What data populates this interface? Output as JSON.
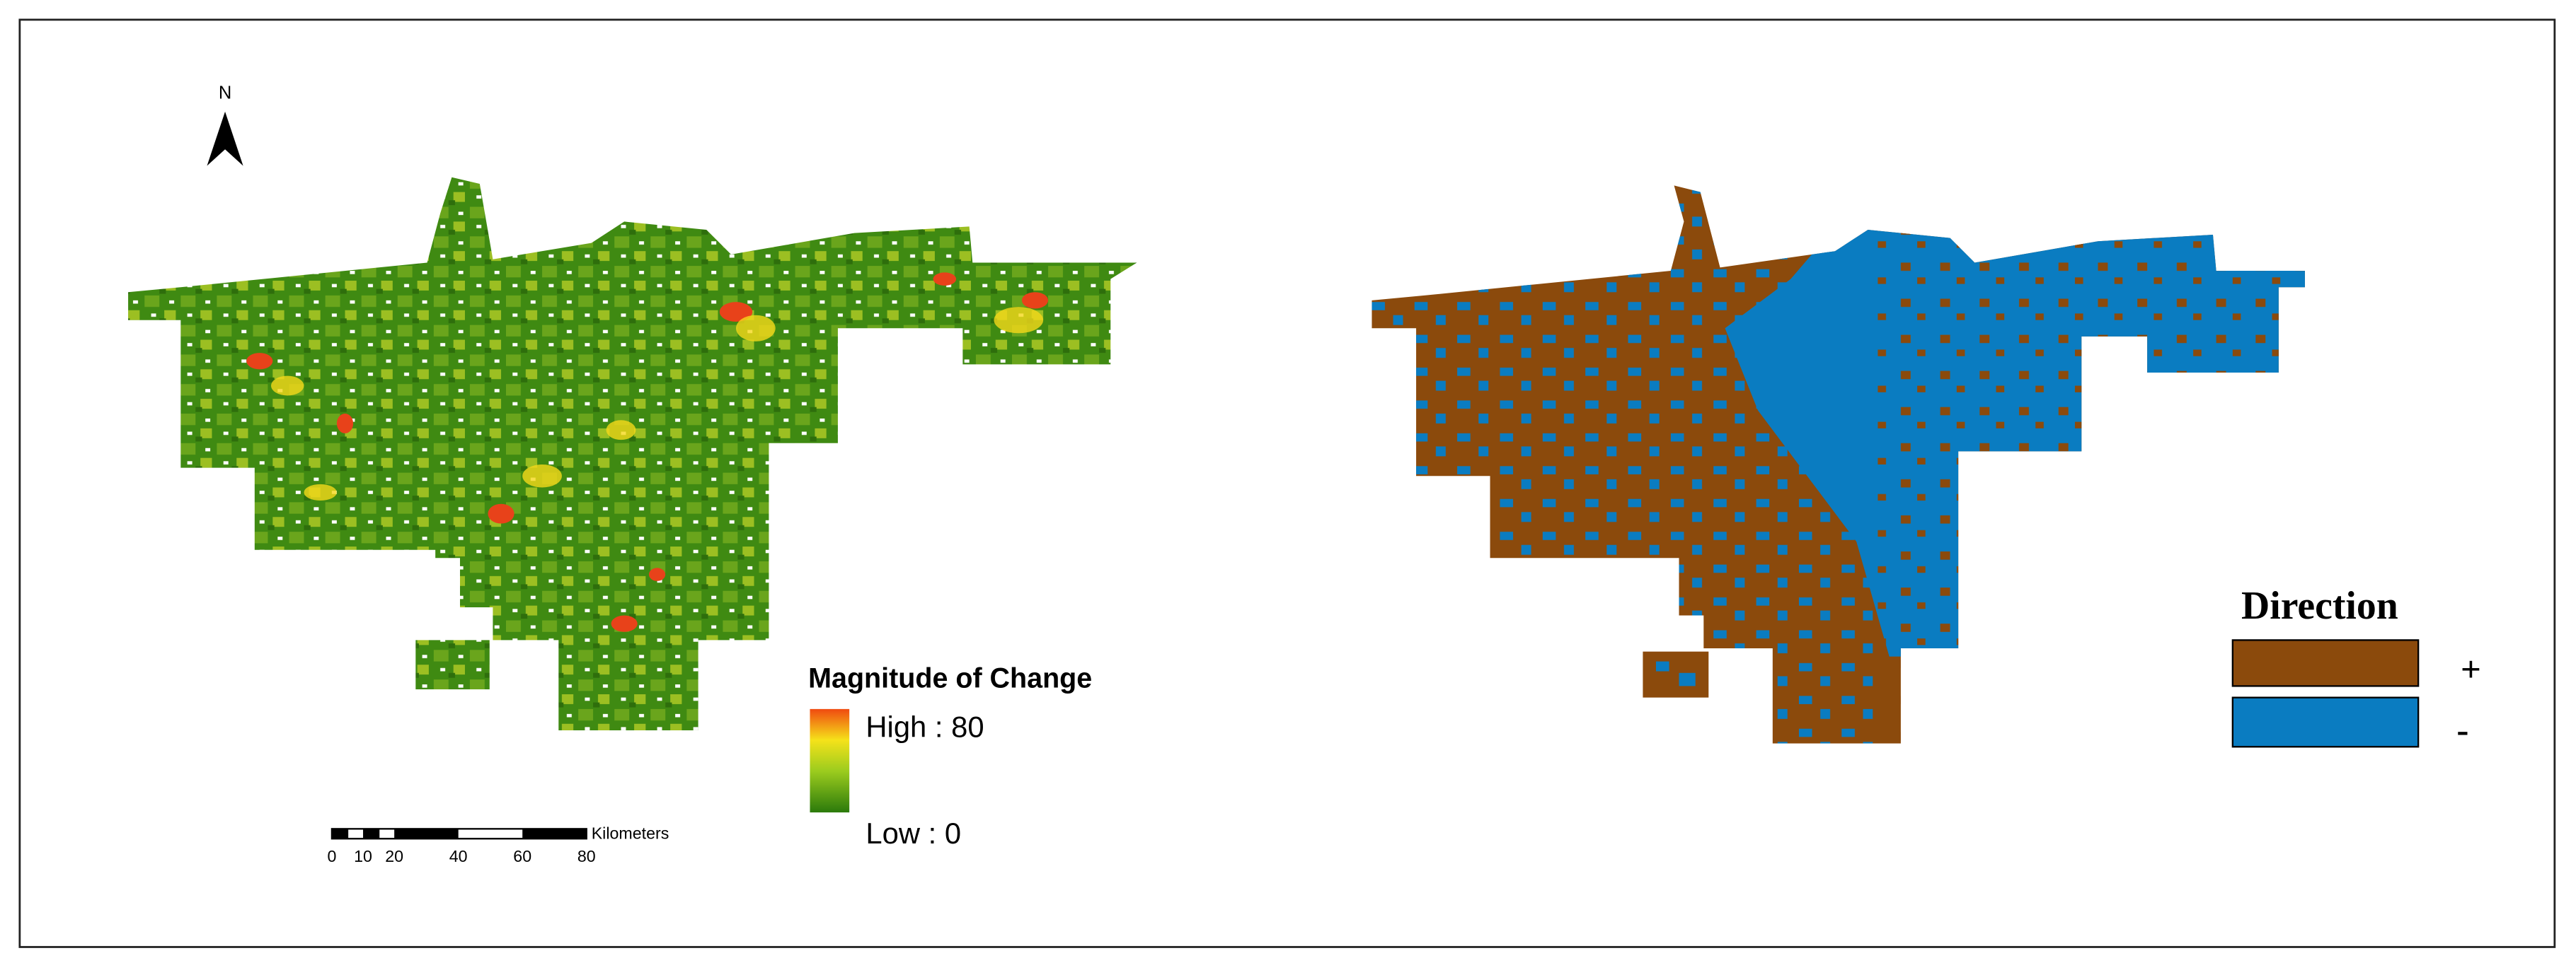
{
  "left_map": {
    "north_label": "N",
    "legend": {
      "title": "Magnitude of Change",
      "high_label": "High : 80",
      "low_label": "Low : 0"
    },
    "scale_bar": {
      "unit": "Kilometers",
      "labels": [
        "0",
        "10",
        "20",
        "40",
        "60",
        "80"
      ]
    }
  },
  "right_map": {
    "legend": {
      "title": "Direction",
      "items": [
        {
          "label": "+",
          "color": "#8b4a0c"
        },
        {
          "label": "-",
          "color": "#0a7cc1"
        }
      ]
    }
  }
}
